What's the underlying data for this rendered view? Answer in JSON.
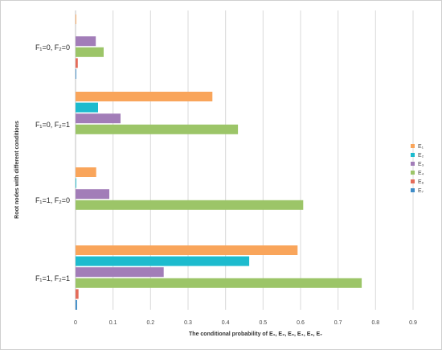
{
  "chart_data": {
    "type": "bar",
    "orientation": "horizontal",
    "categories": [
      {
        "label": "F₁=0, F₂=0"
      },
      {
        "label": "F₁=0, F₂=1"
      },
      {
        "label": "F₁=1, F₂=0"
      },
      {
        "label": "F₁=1, F₂=1"
      }
    ],
    "series": [
      {
        "name": "E₁",
        "color": "#F9A55B",
        "values": [
          0.002,
          0.365,
          0.055,
          0.592
        ]
      },
      {
        "name": "E₂",
        "color": "#1DBBCE",
        "values": [
          0.0,
          0.06,
          0.002,
          0.463
        ]
      },
      {
        "name": "E₃",
        "color": "#A27DB8",
        "values": [
          0.054,
          0.12,
          0.09,
          0.235
        ]
      },
      {
        "name": "E₄",
        "color": "#9CC568",
        "values": [
          0.075,
          0.433,
          0.607,
          0.763
        ]
      },
      {
        "name": "E₆",
        "color": "#E46C5A",
        "values": [
          0.006,
          0.0,
          0.0,
          0.008
        ]
      },
      {
        "name": "E₇",
        "color": "#3E8CC8",
        "values": [
          0.002,
          0.0,
          0.0,
          0.004
        ]
      }
    ],
    "xlim": [
      0,
      0.9
    ],
    "xticks": [
      "0",
      "0.1",
      "0.2",
      "0.3",
      "0.4",
      "0.5",
      "0.6",
      "0.7",
      "0.8",
      "0.9"
    ],
    "xlabel": "The conditional probability of E₁, E₂, E₃, E₄, E₆, E₇",
    "ylabel": "Root nodes with different conditions",
    "grid": "vertical",
    "legend": "right"
  }
}
